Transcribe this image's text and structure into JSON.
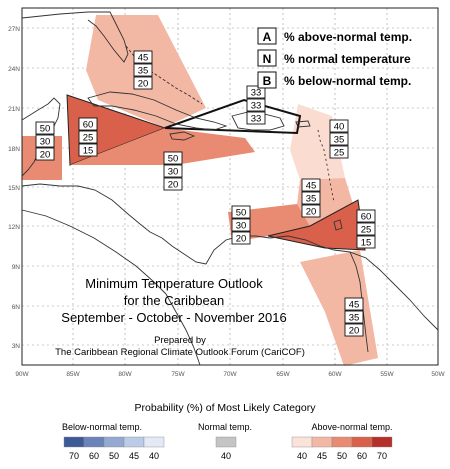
{
  "map": {
    "title_lines": [
      "Minimum Temperature Outlook",
      "for the Caribbean",
      "September - October - November 2016"
    ],
    "prepared_by": "Prepared by",
    "organization": "The Caribbean Regional Climate Outlook Forum (CariCOF)",
    "lat_labels": [
      "27N",
      "24N",
      "21N",
      "18N",
      "15N",
      "12N",
      "9N",
      "6N",
      "3N"
    ],
    "lon_labels": [
      "90W",
      "85W",
      "80W",
      "75W",
      "70W",
      "65W",
      "60W",
      "55W",
      "50W"
    ],
    "key": [
      {
        "code": "A",
        "text": "% above-normal temp."
      },
      {
        "code": "N",
        "text": "% normal temperature"
      },
      {
        "code": "B",
        "text": "% below-normal temp."
      }
    ],
    "regions": [
      {
        "id": "bahamas",
        "values": [
          "45",
          "35",
          "20"
        ],
        "fill": "#f3b8a4"
      },
      {
        "id": "cuba-west",
        "values": [
          "60",
          "25",
          "15"
        ],
        "fill": "#d9604a"
      },
      {
        "id": "belize",
        "values": [
          "50",
          "30",
          "20"
        ],
        "fill": "#e98a72"
      },
      {
        "id": "jamaica",
        "values": [
          "50",
          "30",
          "20"
        ],
        "fill": "#e98a72"
      },
      {
        "id": "hispaniola",
        "values": [
          "33",
          "33",
          "33"
        ],
        "fill": "#ffffff"
      },
      {
        "id": "antilles",
        "values": [
          "40",
          "35",
          "25"
        ],
        "fill": "#fbdcd0"
      },
      {
        "id": "east-caribbean",
        "values": [
          "45",
          "35",
          "20"
        ],
        "fill": "#f3b8a4"
      },
      {
        "id": "colombia-coast",
        "values": [
          "50",
          "30",
          "20"
        ],
        "fill": "#e98a72"
      },
      {
        "id": "venezuela",
        "values": [
          "60",
          "25",
          "15"
        ],
        "fill": "#d9604a"
      },
      {
        "id": "guianas",
        "values": [
          "45",
          "35",
          "20"
        ],
        "fill": "#f3b8a4"
      }
    ]
  },
  "legend": {
    "title": "Probability (%) of Most Likely Category",
    "below": {
      "label": "Below-normal temp.",
      "ticks": [
        "70",
        "60",
        "50",
        "45",
        "40"
      ],
      "colors": [
        "#3d5a96",
        "#6a83b8",
        "#94a9d2",
        "#bccbe7",
        "#e3eaf6"
      ]
    },
    "normal": {
      "label": "Normal temp.",
      "ticks": [
        "40"
      ],
      "colors": [
        "#c4c4c4"
      ]
    },
    "above": {
      "label": "Above-normal temp.",
      "ticks": [
        "40",
        "45",
        "50",
        "60",
        "70"
      ],
      "colors": [
        "#fbe3da",
        "#f3b8a4",
        "#e98a72",
        "#d9604a",
        "#b52f2b"
      ]
    }
  }
}
